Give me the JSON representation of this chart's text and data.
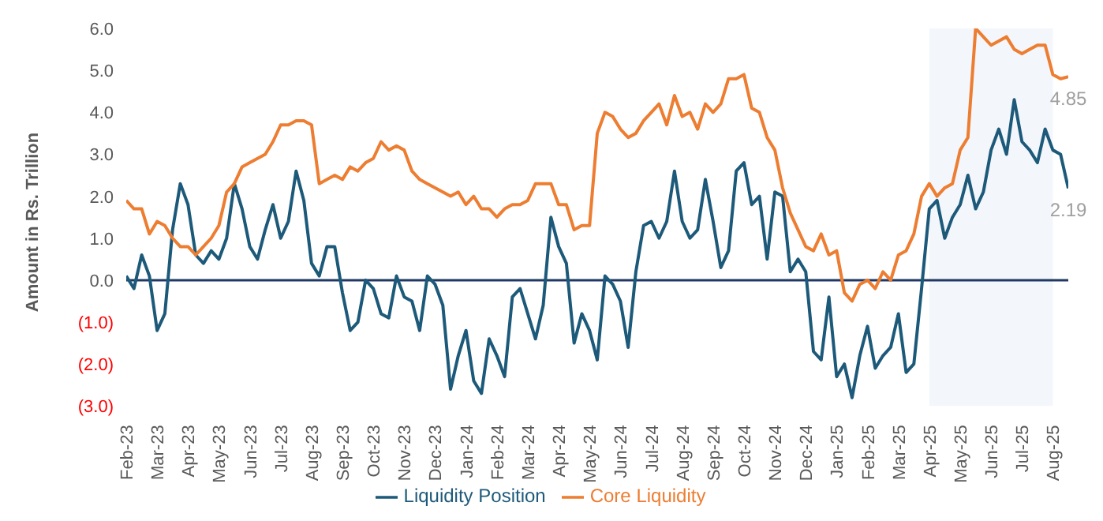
{
  "chart_data": {
    "type": "line",
    "ylabel": "Amount in Rs. Trillion",
    "categories": [
      "Feb-23",
      null,
      null,
      null,
      "Mar-23",
      null,
      null,
      null,
      "Apr-23",
      null,
      null,
      null,
      "May-23",
      null,
      null,
      null,
      "Jun-23",
      null,
      null,
      null,
      "Jul-23",
      null,
      null,
      null,
      "Aug-23",
      null,
      null,
      null,
      "Sep-23",
      null,
      null,
      null,
      "Oct-23",
      null,
      null,
      null,
      "Nov-23",
      null,
      null,
      null,
      "Dec-23",
      null,
      null,
      null,
      "Jan-24",
      null,
      null,
      null,
      "Feb-24",
      null,
      null,
      null,
      "Mar-24",
      null,
      null,
      null,
      "Apr-24",
      null,
      null,
      null,
      "May-24",
      null,
      null,
      null,
      "Jun-24",
      null,
      null,
      null,
      "Jul-24",
      null,
      null,
      null,
      "Aug-24",
      null,
      null,
      null,
      "Sep-24",
      null,
      null,
      null,
      "Oct-24",
      null,
      null,
      null,
      "Nov-24",
      null,
      null,
      null,
      "Dec-24",
      null,
      null,
      null,
      "Jan-25",
      null,
      null,
      null,
      "Feb-25",
      null,
      null,
      null,
      "Mar-25",
      null,
      null,
      null,
      "Apr-25",
      null,
      null,
      null,
      "May-25",
      null,
      null,
      null,
      "Jun-25",
      null,
      null,
      null,
      "Jul-25",
      null,
      null,
      null,
      "Aug-25",
      null,
      null
    ],
    "series": [
      {
        "name": "Liquidity Position",
        "color": "#1d5a7a",
        "values": [
          0.1,
          -0.2,
          0.6,
          0.1,
          -1.2,
          -0.8,
          1.2,
          2.3,
          1.8,
          0.6,
          0.4,
          0.7,
          0.5,
          1.0,
          2.3,
          1.7,
          0.8,
          0.5,
          1.2,
          1.8,
          1.0,
          1.4,
          2.6,
          1.9,
          0.4,
          0.1,
          0.8,
          0.8,
          -0.3,
          -1.2,
          -1.0,
          0.0,
          -0.2,
          -0.8,
          -0.9,
          0.1,
          -0.4,
          -0.5,
          -1.2,
          0.1,
          -0.1,
          -0.6,
          -2.6,
          -1.8,
          -1.2,
          -2.4,
          -2.7,
          -1.4,
          -1.8,
          -2.3,
          -0.4,
          -0.2,
          -0.8,
          -1.4,
          -0.6,
          1.5,
          0.8,
          0.4,
          -1.5,
          -0.8,
          -1.2,
          -1.9,
          0.1,
          -0.1,
          -0.5,
          -1.6,
          0.2,
          1.3,
          1.4,
          1.0,
          1.4,
          2.6,
          1.4,
          1.0,
          1.2,
          2.4,
          1.4,
          0.3,
          0.7,
          2.6,
          2.8,
          1.8,
          2.0,
          0.5,
          2.1,
          2.0,
          0.2,
          0.5,
          0.2,
          -1.7,
          -1.9,
          -0.4,
          -2.3,
          -2.0,
          -2.8,
          -1.8,
          -1.1,
          -2.1,
          -1.8,
          -1.6,
          -0.8,
          -2.2,
          -2.0,
          -0.2,
          1.7,
          1.9,
          1.0,
          1.5,
          1.8,
          2.5,
          1.7,
          2.1,
          3.1,
          3.6,
          3.0,
          4.3,
          3.3,
          3.1,
          2.8,
          3.6,
          3.1,
          3.0,
          2.19
        ],
        "value_labels": [
          null,
          null,
          null,
          null,
          null,
          null,
          null,
          null,
          null,
          null,
          null,
          null,
          null,
          null,
          null,
          null,
          null,
          null,
          null,
          null,
          null,
          null,
          null,
          null,
          null,
          null,
          null,
          null,
          null,
          null,
          null,
          null,
          null,
          null,
          null,
          null,
          null,
          null,
          null,
          null,
          null,
          null,
          null,
          null,
          null,
          null,
          null,
          null,
          null,
          null,
          null,
          null,
          null,
          null,
          null,
          null,
          null,
          null,
          null,
          null,
          null,
          null,
          null,
          null,
          null,
          null,
          null,
          null,
          null,
          null,
          null,
          null,
          null,
          null,
          null,
          null,
          null,
          null,
          null,
          null,
          null,
          null,
          null,
          null,
          null,
          null,
          null,
          null,
          null,
          null,
          null,
          null,
          null,
          null,
          null,
          null,
          null,
          null,
          null,
          null,
          null,
          null,
          null,
          null,
          null,
          null,
          null,
          null,
          null,
          null,
          null,
          null,
          null,
          null,
          null,
          null,
          null,
          null,
          null,
          null,
          null,
          null,
          "2.19"
        ]
      },
      {
        "name": "Core Liquidity",
        "color": "#ed7d31",
        "values": [
          1.9,
          1.7,
          1.7,
          1.1,
          1.4,
          1.3,
          1.0,
          0.8,
          0.8,
          0.6,
          0.8,
          1.0,
          1.3,
          2.1,
          2.3,
          2.7,
          2.8,
          2.9,
          3.0,
          3.3,
          3.7,
          3.7,
          3.8,
          3.8,
          3.7,
          2.3,
          2.4,
          2.5,
          2.4,
          2.7,
          2.6,
          2.8,
          2.9,
          3.3,
          3.1,
          3.2,
          3.1,
          2.6,
          2.4,
          2.3,
          2.2,
          2.1,
          2.0,
          2.1,
          1.8,
          2.0,
          1.7,
          1.7,
          1.5,
          1.7,
          1.8,
          1.8,
          1.9,
          2.3,
          2.3,
          2.3,
          1.8,
          1.8,
          1.2,
          1.3,
          1.3,
          3.5,
          4.0,
          3.9,
          3.6,
          3.4,
          3.5,
          3.8,
          4.0,
          4.2,
          3.7,
          4.4,
          3.9,
          4.0,
          3.6,
          4.2,
          4.0,
          4.2,
          4.8,
          4.8,
          4.9,
          4.1,
          4.0,
          3.4,
          3.1,
          2.2,
          1.6,
          1.2,
          0.8,
          0.7,
          1.1,
          0.6,
          0.7,
          -0.3,
          -0.5,
          -0.1,
          0.0,
          -0.2,
          0.2,
          0.0,
          0.6,
          0.7,
          1.1,
          2.0,
          2.3,
          2.0,
          2.2,
          2.3,
          3.1,
          3.4,
          6.0,
          5.8,
          5.6,
          5.7,
          5.8,
          5.5,
          5.4,
          5.5,
          5.6,
          5.6,
          4.9,
          4.8,
          4.85
        ],
        "value_labels": [
          null,
          null,
          null,
          null,
          null,
          null,
          null,
          null,
          null,
          null,
          null,
          null,
          null,
          null,
          null,
          null,
          null,
          null,
          null,
          null,
          null,
          null,
          null,
          null,
          null,
          null,
          null,
          null,
          null,
          null,
          null,
          null,
          null,
          null,
          null,
          null,
          null,
          null,
          null,
          null,
          null,
          null,
          null,
          null,
          null,
          null,
          null,
          null,
          null,
          null,
          null,
          null,
          null,
          null,
          null,
          null,
          null,
          null,
          null,
          null,
          null,
          null,
          null,
          null,
          null,
          null,
          null,
          null,
          null,
          null,
          null,
          null,
          null,
          null,
          null,
          null,
          null,
          null,
          null,
          null,
          null,
          null,
          null,
          null,
          null,
          null,
          null,
          null,
          null,
          null,
          null,
          null,
          null,
          null,
          null,
          null,
          null,
          null,
          null,
          null,
          null,
          null,
          null,
          null,
          null,
          null,
          null,
          null,
          null,
          null,
          null,
          null,
          null,
          null,
          null,
          null,
          null,
          null,
          null,
          null,
          null,
          null,
          "4.85"
        ]
      }
    ],
    "ylim": [
      -3,
      6
    ],
    "ref_lines": [
      {
        "axis": "y",
        "value": 0,
        "color": "#1f3864"
      }
    ],
    "yticks": [
      {
        "value": 6,
        "label": "6.0"
      },
      {
        "value": 5,
        "label": "5.0"
      },
      {
        "value": 4,
        "label": "4.0"
      },
      {
        "value": 3,
        "label": "3.0"
      },
      {
        "value": 2,
        "label": "2.0"
      },
      {
        "value": 1,
        "label": "1.0"
      },
      {
        "value": 0,
        "label": "0.0"
      },
      {
        "value": -1,
        "label": "(1.0)"
      },
      {
        "value": -2,
        "label": "(2.0)"
      },
      {
        "value": -3,
        "label": "(3.0)"
      }
    ],
    "bands": [
      {
        "axis": "x",
        "from": "Apr-25",
        "to": "Aug-25",
        "color": "#f3f6fb"
      }
    ],
    "grid": false,
    "legend": "bottom",
    "marker": "none",
    "line_style": "solid"
  }
}
